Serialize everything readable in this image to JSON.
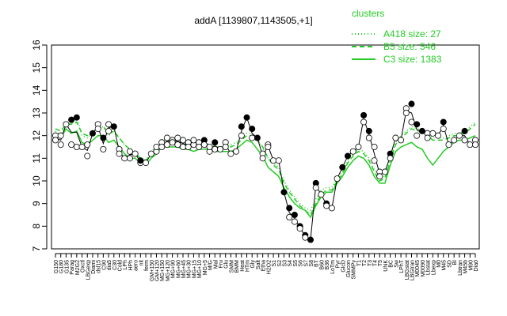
{
  "chart_data": {
    "type": "line",
    "title": "addA [1139807,1143505,+1]",
    "xlabel": "",
    "ylabel": "",
    "ylim": [
      7,
      16
    ],
    "yticks": [
      7,
      8,
      9,
      10,
      11,
      12,
      13,
      14,
      15,
      16
    ],
    "grid": false,
    "legend_position": "top-right",
    "legend_title": "clusters",
    "legend_color": "#22cc22",
    "series_color": "#22cc22",
    "point_fill": "#ffffff",
    "point_fill_highlight": "#000000",
    "x_labels": [
      "G150",
      "G180",
      "G135",
      "Parag",
      "M2G2",
      "Oxctl",
      "LBGexp",
      "Diami",
      "dsl15",
      "C90",
      "dia5",
      "C30",
      "Cold",
      "LPh",
      "HPh",
      "aero",
      "nit",
      "ferm",
      "GM+150",
      "GM+120",
      "MG+150",
      "MG+120",
      "MG+90",
      "MG+60",
      "MG+45",
      "MG+30",
      "MG+15",
      "MG+10",
      "MG+5",
      "M/G",
      "Mal",
      "Fru",
      "Glu",
      "SMM",
      "BMM",
      "Heat",
      "HTm",
      "Gly",
      "Salt",
      "Etha",
      "H2O2",
      "S1",
      "S2",
      "S3",
      "S4",
      "S5",
      "S6",
      "S7",
      "S8",
      "BT",
      "B60",
      "B36",
      "LoTm",
      "Pyr",
      "GlcD",
      "Glucon",
      "SMMPy",
      "T1",
      "T2",
      "T3",
      "T4",
      "T5",
      "UNK",
      "BC",
      "Sw",
      "LPhT",
      "LBGstat",
      "LBGtran",
      "M0045",
      "M0090",
      "Lbstat",
      "Lbexp",
      "M0",
      "M45",
      "SD",
      "BI",
      "Lbtran",
      "M45b",
      "M90",
      "Dia0"
    ],
    "series": [
      {
        "name": "A418 size: 27",
        "style": "dotted",
        "values": [
          12.2,
          12.0,
          12.6,
          12.5,
          12.8,
          12.0,
          11.9,
          12.1,
          12.3,
          12.4,
          12.0,
          12.2,
          11.9,
          11.6,
          11.4,
          11.3,
          11.0,
          10.9,
          11.3,
          11.5,
          11.8,
          11.8,
          11.8,
          11.8,
          11.7,
          11.6,
          11.6,
          11.7,
          11.7,
          11.6,
          11.5,
          11.5,
          11.5,
          11.6,
          11.7,
          11.9,
          12.1,
          12.1,
          11.8,
          11.5,
          11.0,
          10.8,
          10.6,
          10.0,
          9.6,
          9.3,
          9.0,
          8.8,
          8.7,
          9.2,
          9.6,
          9.7,
          9.7,
          10.1,
          10.4,
          10.9,
          11.2,
          11.4,
          11.3,
          11.0,
          10.5,
          10.1,
          10.2,
          11.0,
          11.7,
          12.0,
          12.2,
          12.4,
          12.3,
          12.3,
          12.1,
          11.9,
          11.9,
          11.9,
          12.0,
          12.1,
          12.1,
          12.2,
          12.4,
          12.6
        ]
      },
      {
        "name": "B5 size: 546",
        "style": "dashed",
        "values": [
          12.3,
          12.2,
          12.5,
          12.5,
          12.6,
          12.1,
          12.0,
          12.1,
          12.3,
          12.4,
          12.1,
          12.2,
          11.9,
          11.6,
          11.4,
          11.2,
          11.0,
          10.9,
          11.2,
          11.4,
          11.6,
          11.7,
          11.7,
          11.7,
          11.6,
          11.6,
          11.5,
          11.6,
          11.6,
          11.6,
          11.5,
          11.5,
          11.5,
          11.5,
          11.6,
          11.8,
          12.0,
          12.0,
          11.8,
          11.5,
          11.0,
          10.7,
          10.5,
          9.9,
          9.5,
          9.2,
          8.9,
          8.7,
          8.5,
          9.0,
          9.4,
          9.6,
          9.6,
          10.0,
          10.3,
          10.8,
          11.1,
          11.3,
          11.2,
          10.9,
          10.4,
          10.0,
          10.1,
          10.9,
          11.6,
          11.9,
          12.1,
          12.3,
          12.2,
          12.2,
          12.0,
          11.8,
          11.8,
          11.8,
          11.9,
          12.0,
          12.0,
          12.1,
          12.3,
          12.5
        ]
      },
      {
        "name": "C3 size: 1383",
        "style": "solid",
        "values": [
          12.0,
          11.9,
          12.3,
          12.1,
          12.2,
          11.7,
          11.6,
          11.8,
          12.0,
          12.0,
          11.7,
          11.8,
          11.5,
          11.2,
          11.0,
          11.0,
          10.8,
          10.7,
          11.0,
          11.2,
          11.5,
          11.5,
          11.5,
          11.5,
          11.4,
          11.4,
          11.3,
          11.4,
          11.4,
          11.4,
          11.3,
          11.3,
          11.3,
          11.3,
          11.4,
          11.6,
          11.8,
          11.7,
          11.4,
          11.1,
          10.6,
          10.4,
          10.2,
          9.7,
          9.3,
          9.0,
          8.8,
          8.7,
          8.4,
          8.9,
          9.3,
          9.5,
          9.5,
          9.9,
          10.2,
          10.6,
          10.9,
          11.1,
          11.0,
          10.7,
          10.2,
          9.9,
          9.9,
          10.7,
          11.3,
          11.5,
          11.6,
          11.7,
          11.5,
          11.4,
          11.0,
          10.7,
          11.0,
          11.3,
          11.5,
          11.7,
          11.8,
          11.8,
          11.9,
          12.0
        ]
      }
    ],
    "points": [
      {
        "x": 0,
        "y": 12.0
      },
      {
        "x": 0,
        "y": 11.8
      },
      {
        "x": 1,
        "y": 12.0
      },
      {
        "x": 1,
        "y": 11.6
      },
      {
        "x": 2,
        "y": 12.5
      },
      {
        "x": 3,
        "y": 12.7
      },
      {
        "x": 3,
        "y": 11.6
      },
      {
        "x": 4,
        "y": 12.8
      },
      {
        "x": 4,
        "y": 11.5
      },
      {
        "x": 5,
        "y": 11.5
      },
      {
        "x": 6,
        "y": 11.6
      },
      {
        "x": 6,
        "y": 11.1
      },
      {
        "x": 7,
        "y": 12.1
      },
      {
        "x": 8,
        "y": 12.5
      },
      {
        "x": 8,
        "y": 12.3
      },
      {
        "x": 9,
        "y": 11.9
      },
      {
        "x": 9,
        "y": 11.4
      },
      {
        "x": 10,
        "y": 12.5
      },
      {
        "x": 10,
        "y": 12.2
      },
      {
        "x": 11,
        "y": 12.4
      },
      {
        "x": 12,
        "y": 11.4
      },
      {
        "x": 12,
        "y": 11.2
      },
      {
        "x": 13,
        "y": 11.0
      },
      {
        "x": 14,
        "y": 11.3
      },
      {
        "x": 14,
        "y": 11.0
      },
      {
        "x": 15,
        "y": 11.2
      },
      {
        "x": 16,
        "y": 10.8
      },
      {
        "x": 16,
        "y": 10.9
      },
      {
        "x": 17,
        "y": 10.8
      },
      {
        "x": 18,
        "y": 11.2
      },
      {
        "x": 19,
        "y": 11.3
      },
      {
        "x": 19,
        "y": 11.5
      },
      {
        "x": 20,
        "y": 11.7
      },
      {
        "x": 20,
        "y": 11.5
      },
      {
        "x": 21,
        "y": 11.9
      },
      {
        "x": 21,
        "y": 11.6
      },
      {
        "x": 22,
        "y": 11.8
      },
      {
        "x": 22,
        "y": 11.7
      },
      {
        "x": 23,
        "y": 11.9
      },
      {
        "x": 23,
        "y": 11.6
      },
      {
        "x": 24,
        "y": 11.8
      },
      {
        "x": 24,
        "y": 11.5
      },
      {
        "x": 25,
        "y": 11.7
      },
      {
        "x": 25,
        "y": 11.5
      },
      {
        "x": 26,
        "y": 11.6
      },
      {
        "x": 26,
        "y": 11.8
      },
      {
        "x": 27,
        "y": 11.7
      },
      {
        "x": 27,
        "y": 11.5
      },
      {
        "x": 28,
        "y": 11.8
      },
      {
        "x": 28,
        "y": 11.6
      },
      {
        "x": 29,
        "y": 11.3
      },
      {
        "x": 29,
        "y": 11.5
      },
      {
        "x": 30,
        "y": 11.7
      },
      {
        "x": 30,
        "y": 11.4
      },
      {
        "x": 31,
        "y": 11.4
      },
      {
        "x": 32,
        "y": 11.7
      },
      {
        "x": 32,
        "y": 11.5
      },
      {
        "x": 33,
        "y": 11.2
      },
      {
        "x": 34,
        "y": 11.3
      },
      {
        "x": 35,
        "y": 12.4
      },
      {
        "x": 35,
        "y": 12.0
      },
      {
        "x": 36,
        "y": 12.8
      },
      {
        "x": 37,
        "y": 12.3
      },
      {
        "x": 37,
        "y": 11.9
      },
      {
        "x": 38,
        "y": 11.9
      },
      {
        "x": 39,
        "y": 11.2
      },
      {
        "x": 39,
        "y": 11.0
      },
      {
        "x": 40,
        "y": 11.6
      },
      {
        "x": 40,
        "y": 11.5
      },
      {
        "x": 41,
        "y": 10.9
      },
      {
        "x": 42,
        "y": 10.9
      },
      {
        "x": 43,
        "y": 9.5
      },
      {
        "x": 44,
        "y": 8.8
      },
      {
        "x": 44,
        "y": 8.4
      },
      {
        "x": 45,
        "y": 8.5
      },
      {
        "x": 45,
        "y": 8.2
      },
      {
        "x": 46,
        "y": 8.0
      },
      {
        "x": 46,
        "y": 7.9
      },
      {
        "x": 47,
        "y": 7.6
      },
      {
        "x": 47,
        "y": 7.5
      },
      {
        "x": 48,
        "y": 7.4
      },
      {
        "x": 49,
        "y": 9.9
      },
      {
        "x": 49,
        "y": 9.7
      },
      {
        "x": 50,
        "y": 9.4
      },
      {
        "x": 51,
        "y": 9.0
      },
      {
        "x": 51,
        "y": 8.9
      },
      {
        "x": 52,
        "y": 8.8
      },
      {
        "x": 53,
        "y": 10.1
      },
      {
        "x": 54,
        "y": 10.6
      },
      {
        "x": 55,
        "y": 11.1
      },
      {
        "x": 56,
        "y": 11.3
      },
      {
        "x": 57,
        "y": 11.5
      },
      {
        "x": 58,
        "y": 12.9
      },
      {
        "x": 58,
        "y": 12.6
      },
      {
        "x": 59,
        "y": 12.2
      },
      {
        "x": 59,
        "y": 11.9
      },
      {
        "x": 60,
        "y": 11.5
      },
      {
        "x": 60,
        "y": 10.9
      },
      {
        "x": 61,
        "y": 10.4
      },
      {
        "x": 61,
        "y": 10.2
      },
      {
        "x": 62,
        "y": 10.4
      },
      {
        "x": 63,
        "y": 11.2
      },
      {
        "x": 63,
        "y": 11.0
      },
      {
        "x": 64,
        "y": 11.9
      },
      {
        "x": 65,
        "y": 11.8
      },
      {
        "x": 66,
        "y": 13.2
      },
      {
        "x": 66,
        "y": 13.0
      },
      {
        "x": 67,
        "y": 13.4
      },
      {
        "x": 67,
        "y": 12.6
      },
      {
        "x": 68,
        "y": 12.5
      },
      {
        "x": 68,
        "y": 12.0
      },
      {
        "x": 69,
        "y": 12.2
      },
      {
        "x": 70,
        "y": 12.1
      },
      {
        "x": 70,
        "y": 11.9
      },
      {
        "x": 71,
        "y": 12.1
      },
      {
        "x": 72,
        "y": 12.0
      },
      {
        "x": 73,
        "y": 12.6
      },
      {
        "x": 73,
        "y": 12.3
      },
      {
        "x": 74,
        "y": 11.6
      },
      {
        "x": 75,
        "y": 11.8
      },
      {
        "x": 76,
        "y": 12.0
      },
      {
        "x": 77,
        "y": 12.2
      },
      {
        "x": 77,
        "y": 11.8
      },
      {
        "x": 78,
        "y": 11.6
      },
      {
        "x": 79,
        "y": 11.8
      },
      {
        "x": 79,
        "y": 11.6
      }
    ],
    "highlight_points": [
      3,
      4,
      7,
      9,
      11,
      16,
      28,
      30,
      35,
      36,
      37,
      38,
      43,
      44,
      45,
      46,
      47,
      48,
      49,
      51,
      54,
      55,
      58,
      59,
      63,
      67,
      68,
      69,
      73,
      77
    ]
  }
}
